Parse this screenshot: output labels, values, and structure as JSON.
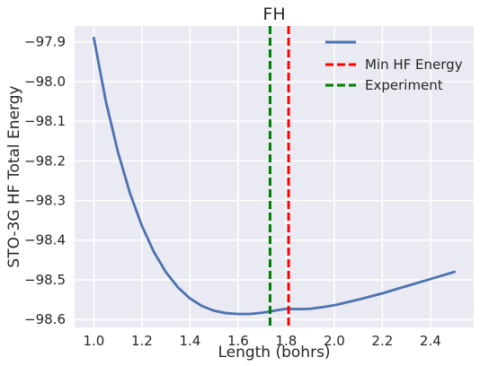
{
  "chart_data": {
    "type": "line",
    "title": "FH",
    "xlabel": "Length (bohrs)",
    "ylabel": "STO-3G HF Total Energy",
    "xlim": [
      0.92,
      2.58
    ],
    "ylim": [
      -98.62,
      -97.86
    ],
    "xticks": [
      1.0,
      1.2,
      1.4,
      1.6,
      1.8,
      2.0,
      2.2,
      2.4
    ],
    "xtick_labels": [
      "1.0",
      "1.2",
      "1.4",
      "1.6",
      "1.8",
      "2.0",
      "2.2",
      "2.4"
    ],
    "yticks": [
      -97.9,
      -98.0,
      -98.1,
      -98.2,
      -98.3,
      -98.4,
      -98.5,
      -98.6
    ],
    "ytick_labels": [
      "−97.9",
      "−98.0",
      "−98.1",
      "−98.2",
      "−98.3",
      "−98.4",
      "−98.5",
      "−98.6"
    ],
    "grid": true,
    "legend_position": "top-right",
    "series": [
      {
        "name": "",
        "color": "#4c72b0",
        "style": "solid",
        "x": [
          1.0,
          1.05,
          1.1,
          1.15,
          1.2,
          1.25,
          1.3,
          1.35,
          1.4,
          1.45,
          1.5,
          1.55,
          1.6,
          1.65,
          1.7,
          1.75,
          1.8,
          1.85,
          1.9,
          1.95,
          2.0,
          2.05,
          2.1,
          2.15,
          2.2,
          2.25,
          2.3,
          2.35,
          2.4,
          2.45,
          2.5
        ],
        "y": [
          -97.89,
          -98.05,
          -98.177,
          -98.281,
          -98.364,
          -98.43,
          -98.481,
          -98.519,
          -98.547,
          -98.566,
          -98.578,
          -98.584,
          -98.586,
          -98.586,
          -98.583,
          -98.578,
          -98.573,
          -98.574,
          -98.573,
          -98.569,
          -98.564,
          -98.557,
          -98.55,
          -98.542,
          -98.534,
          -98.525,
          -98.516,
          -98.507,
          -98.498,
          -98.489,
          -98.48
        ]
      },
      {
        "name": "Min HF Energy",
        "color": "#ff0000",
        "style": "dashed",
        "type": "vline",
        "x": 1.81
      },
      {
        "name": "Experiment",
        "color": "#008000",
        "style": "dashed",
        "type": "vline",
        "x": 1.733
      }
    ]
  }
}
